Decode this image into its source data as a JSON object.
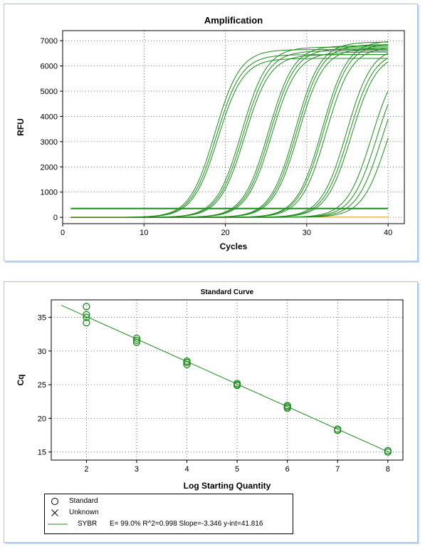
{
  "chart_data": [
    {
      "type": "line",
      "title": "Amplification",
      "xlabel": "Cycles",
      "ylabel": "RFU",
      "xlim": [
        0,
        42
      ],
      "ylim": [
        -250,
        7400
      ],
      "xticks": [
        0,
        10,
        20,
        30,
        40
      ],
      "yticks": [
        0,
        1000,
        2000,
        3000,
        4000,
        5000,
        6000,
        7000
      ],
      "grid": "dotted",
      "line_color": "#1e8c1e",
      "baseline_color": "#e0a020",
      "threshold": 350,
      "cycles": [
        1,
        40
      ],
      "series": [
        {
          "midpoint": 18.7,
          "plateau": 6650
        },
        {
          "midpoint": 18.9,
          "plateau": 6450
        },
        {
          "midpoint": 19.1,
          "plateau": 6300
        },
        {
          "midpoint": 22.0,
          "plateau": 6750
        },
        {
          "midpoint": 22.2,
          "plateau": 6600
        },
        {
          "midpoint": 22.4,
          "plateau": 6450
        },
        {
          "midpoint": 25.3,
          "plateau": 6800
        },
        {
          "midpoint": 25.5,
          "plateau": 6700
        },
        {
          "midpoint": 25.7,
          "plateau": 6550
        },
        {
          "midpoint": 28.6,
          "plateau": 6950
        },
        {
          "midpoint": 28.8,
          "plateau": 6850
        },
        {
          "midpoint": 29.0,
          "plateau": 6700
        },
        {
          "midpoint": 31.9,
          "plateau": 7000
        },
        {
          "midpoint": 32.1,
          "plateau": 6900
        },
        {
          "midpoint": 32.4,
          "plateau": 6750
        },
        {
          "midpoint": 34.9,
          "plateau": 6750
        },
        {
          "midpoint": 35.2,
          "plateau": 6600
        },
        {
          "midpoint": 35.5,
          "plateau": 6500
        },
        {
          "midpoint": 38.0,
          "plateau": 6400
        },
        {
          "midpoint": 38.6,
          "plateau": 6300
        },
        {
          "midpoint": 39.2,
          "plateau": 6200
        },
        {
          "midpoint": 39.9,
          "plateau": 6100
        }
      ]
    },
    {
      "type": "scatter",
      "title": "Standard Curve",
      "xlabel": "Log Starting Quantity",
      "ylabel": "Cq",
      "xlim": [
        1.3,
        8.3
      ],
      "ylim": [
        13.8,
        37.6
      ],
      "xticks": [
        2,
        3,
        4,
        5,
        6,
        7,
        8
      ],
      "yticks": [
        15,
        20,
        25,
        30,
        35
      ],
      "grid": "dotted",
      "points": [
        {
          "x": 2,
          "y": 36.6
        },
        {
          "x": 2,
          "y": 35.4
        },
        {
          "x": 2,
          "y": 35.0
        },
        {
          "x": 2,
          "y": 34.2
        },
        {
          "x": 3,
          "y": 31.9
        },
        {
          "x": 3,
          "y": 31.6
        },
        {
          "x": 3,
          "y": 31.3
        },
        {
          "x": 4,
          "y": 28.5
        },
        {
          "x": 4,
          "y": 28.3
        },
        {
          "x": 4,
          "y": 28.0
        },
        {
          "x": 5,
          "y": 25.2
        },
        {
          "x": 5,
          "y": 25.0
        },
        {
          "x": 5,
          "y": 24.9
        },
        {
          "x": 6,
          "y": 21.9
        },
        {
          "x": 6,
          "y": 21.7
        },
        {
          "x": 6,
          "y": 21.5
        },
        {
          "x": 7,
          "y": 18.4
        },
        {
          "x": 7,
          "y": 18.2
        },
        {
          "x": 8,
          "y": 15.2
        },
        {
          "x": 8,
          "y": 15.0
        }
      ],
      "fit": {
        "slope": -3.346,
        "intercept": 41.816,
        "x_from": 1.5,
        "x_to": 8.05
      },
      "color": "#1e8c1e"
    }
  ],
  "legend": {
    "standard_label": "Standard",
    "unknown_label": "Unknown",
    "fit_label": "SYBR",
    "fit_stats": "E= 99.0% R^2=0.998 Slope=-3.346 y-int=41.816"
  }
}
